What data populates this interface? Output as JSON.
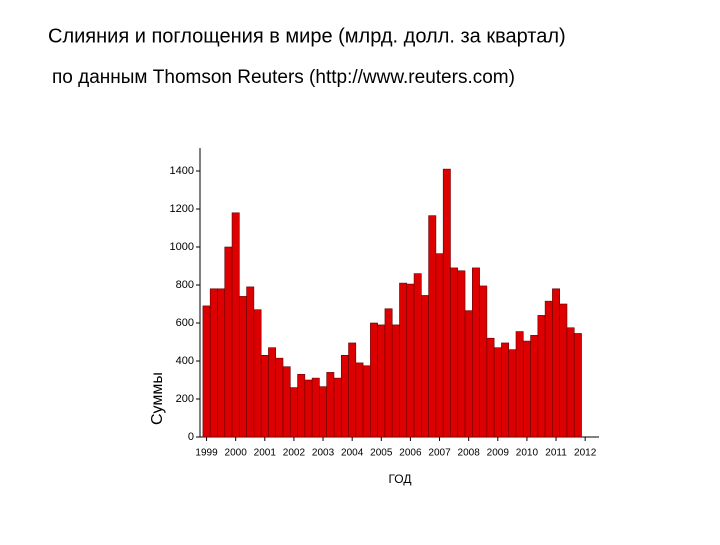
{
  "chart_data": {
    "type": "bar",
    "title": "Слияния и поглощения в мире (млрд. долл. за квартал)",
    "subtitle": "по данным Thomson Reuters (http://www.reuters.com)",
    "x_label": "ГОД",
    "y_label": "Суммы",
    "x": [
      1999,
      1999.25,
      1999.5,
      1999.75,
      2000,
      2000.25,
      2000.5,
      2000.75,
      2001,
      2001.25,
      2001.5,
      2001.75,
      2002,
      2002.25,
      2002.5,
      2002.75,
      2003,
      2003.25,
      2003.5,
      2003.75,
      2004,
      2004.25,
      2004.5,
      2004.75,
      2005,
      2005.25,
      2005.5,
      2005.75,
      2006,
      2006.25,
      2006.5,
      2006.75,
      2007,
      2007.25,
      2007.5,
      2007.75,
      2008,
      2008.25,
      2008.5,
      2008.75,
      2009,
      2009.25,
      2009.5,
      2009.75,
      2010,
      2010.25,
      2010.5,
      2010.75,
      2011,
      2011.25,
      2011.5,
      2011.75
    ],
    "values": [
      690,
      780,
      780,
      1000,
      1180,
      740,
      790,
      670,
      430,
      470,
      415,
      370,
      260,
      330,
      300,
      310,
      265,
      340,
      310,
      430,
      495,
      390,
      375,
      600,
      590,
      675,
      590,
      810,
      805,
      860,
      745,
      1165,
      965,
      1410,
      890,
      875,
      665,
      890,
      795,
      520,
      470,
      495,
      460,
      555,
      505,
      535,
      640,
      715,
      780,
      700,
      575,
      545
    ],
    "color": "#dd0000",
    "xlim": [
      1998.9,
      2012.6
    ],
    "xticks": [
      1999,
      2000,
      2001,
      2002,
      2003,
      2004,
      2005,
      2006,
      2007,
      2008,
      2009,
      2010,
      2011,
      2012
    ],
    "ylim": [
      0,
      1500
    ],
    "yticks": [
      0,
      200,
      400,
      600,
      800,
      1000,
      1200,
      1400
    ]
  }
}
